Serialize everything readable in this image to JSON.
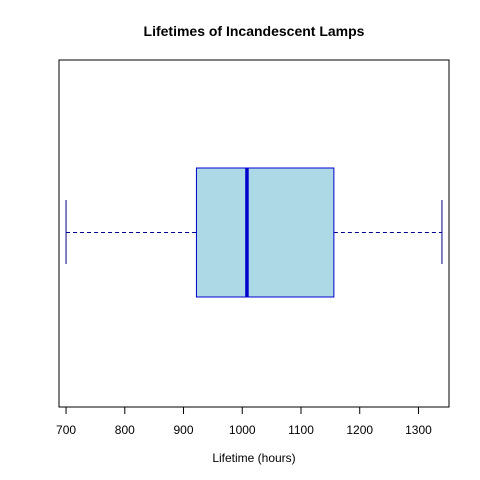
{
  "chart_data": {
    "type": "boxplot",
    "title": "Lifetimes of Incandescent Lamps",
    "xlabel": "Lifetime (hours)",
    "ylabel": "",
    "orientation": "horizontal",
    "xlim": [
      688,
      1352
    ],
    "x_ticks": [
      700,
      800,
      900,
      1000,
      1100,
      1200,
      1300
    ],
    "grid": false,
    "box": {
      "min": 700,
      "q1": 922,
      "median": 1008,
      "q3": 1156,
      "max": 1340
    },
    "colors": {
      "box_fill": "#add8e6",
      "box_border": "#0000cd",
      "median": "#0000cd",
      "whisker": "#00008b"
    }
  }
}
